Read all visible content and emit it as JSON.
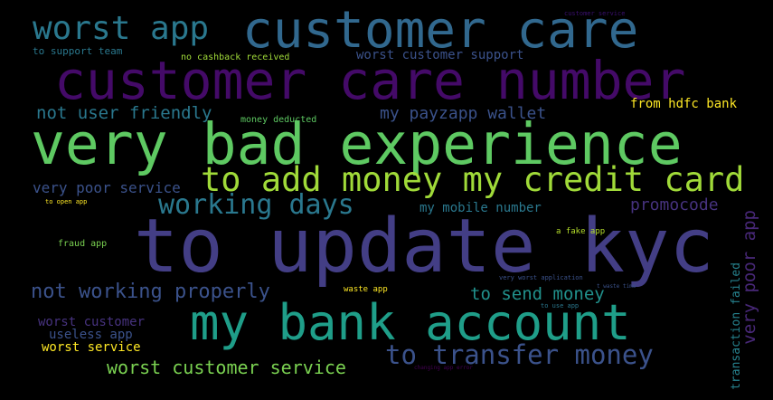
{
  "words": [
    {
      "text": "to update kyc",
      "color": "#433e85"
    },
    {
      "text": "very bad experience",
      "color": "#5ec962"
    },
    {
      "text": "customer care number",
      "color": "#440a68"
    },
    {
      "text": "customer care",
      "color": "#31688e"
    },
    {
      "text": "my bank account",
      "color": "#1f9e89"
    },
    {
      "text": "to add money my credit card",
      "color": "#a0da39"
    },
    {
      "text": "worst app",
      "color": "#2a788e"
    },
    {
      "text": "working days",
      "color": "#2a788e"
    },
    {
      "text": "to transfer money",
      "color": "#3b528b"
    },
    {
      "text": "not working properly",
      "color": "#3b528b"
    },
    {
      "text": "worst customer service",
      "color": "#7ad151"
    },
    {
      "text": "to send money",
      "color": "#21918c"
    },
    {
      "text": "not user friendly",
      "color": "#2a788e"
    },
    {
      "text": "my payzapp wallet",
      "color": "#3b528b"
    },
    {
      "text": "promocode",
      "color": "#46327e"
    },
    {
      "text": "very poor app",
      "color": "#482878"
    },
    {
      "text": "very poor service",
      "color": "#3b528b"
    },
    {
      "text": "worst customer support",
      "color": "#3b528b"
    },
    {
      "text": "from hdfc bank",
      "color": "#fde725"
    },
    {
      "text": "my mobile number",
      "color": "#2a788e"
    },
    {
      "text": "worst customer",
      "color": "#46327e"
    },
    {
      "text": "useless app",
      "color": "#3b528b"
    },
    {
      "text": "worst service",
      "color": "#fde725"
    },
    {
      "text": "transaction failed",
      "color": "#26828e"
    },
    {
      "text": "to support team",
      "color": "#2a788e"
    },
    {
      "text": "no cashback received",
      "color": "#a0da39"
    },
    {
      "text": "money deducted",
      "color": "#5ec962"
    },
    {
      "text": "fraud app",
      "color": "#7ad151"
    },
    {
      "text": "a fake app",
      "color": "#b5de2b"
    },
    {
      "text": "waste app",
      "color": "#fde725"
    },
    {
      "text": "to open app",
      "color": "#fde725"
    },
    {
      "text": "very worst application",
      "color": "#3b528b"
    },
    {
      "text": "to use app",
      "color": "#2a788e"
    },
    {
      "text": "t waste time",
      "color": "#3b528b"
    },
    {
      "text": "changing app error",
      "color": "#440154"
    },
    {
      "text": "customer service",
      "color": "#3b0f70"
    }
  ]
}
